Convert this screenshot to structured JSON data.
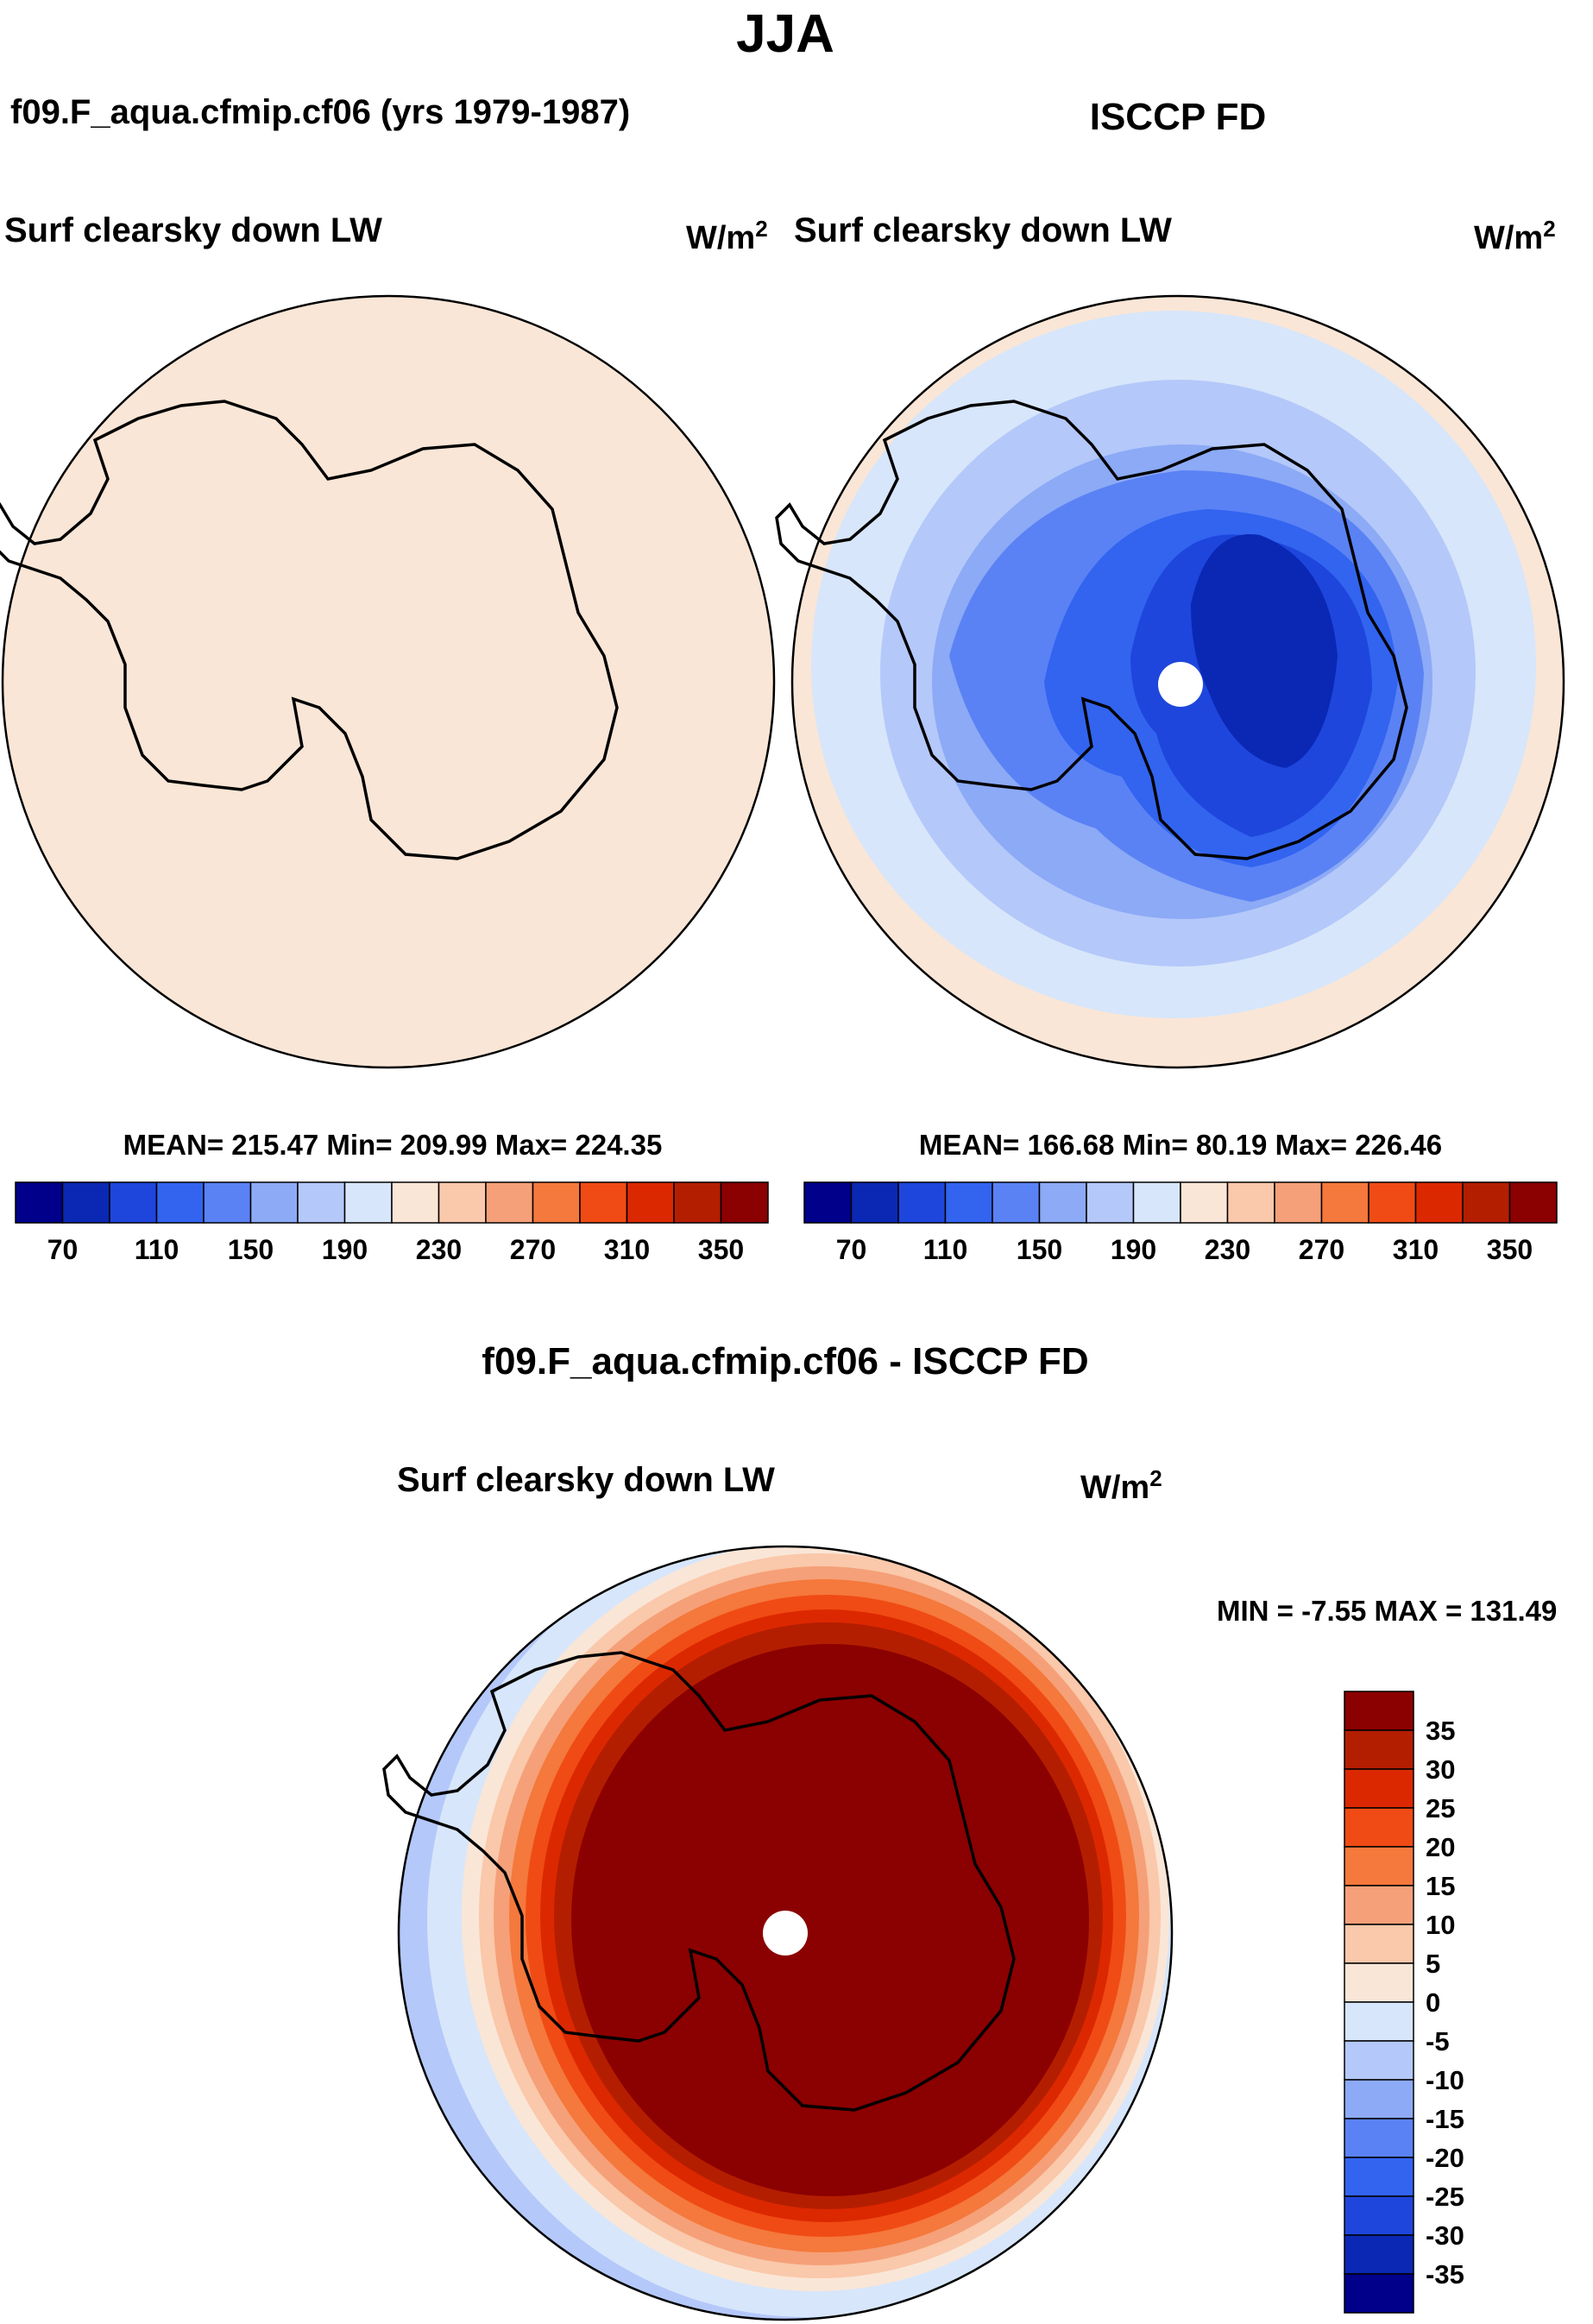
{
  "chart_data": {
    "type": "heatmap",
    "projection": "south polar stereographic",
    "season_title": "JJA",
    "variable": "Surf clearsky down LW",
    "units_base": "W/m",
    "units_exp": "2",
    "panels": [
      {
        "id": "model",
        "title": "f09.F_aqua.cfmip.cf06 (yrs 1979-1987)",
        "variable": "Surf clearsky down LW",
        "stats_text": "MEAN= 215.47  Min= 209.99  Max= 224.35",
        "stats": {
          "mean": 215.47,
          "min": 209.99,
          "max": 224.35
        },
        "field_description": "nearly uniform ~215 W/m2 everywhere"
      },
      {
        "id": "obs",
        "title": "ISCCP FD",
        "variable": "Surf clearsky down LW",
        "stats_text": "MEAN= 166.68  Min=  80.19  Max= 226.46",
        "stats": {
          "mean": 166.68,
          "min": 80.19,
          "max": 226.46
        },
        "field_description": "lowest (~80-100) over East Antarctic plateau, increasing outward to ~220 at edge"
      }
    ],
    "abs_colorbar": {
      "levels": [
        70,
        90,
        110,
        130,
        150,
        170,
        190,
        210,
        230,
        250,
        270,
        290,
        310,
        330,
        350
      ],
      "tick_labels": [
        "70",
        "110",
        "150",
        "190",
        "230",
        "270",
        "310",
        "350"
      ],
      "colors": [
        "#00008b",
        "#0a28b4",
        "#1e46dc",
        "#3264f0",
        "#5a82f5",
        "#8caaf5",
        "#b4c8fa",
        "#d7e6fa",
        "#fae6d7",
        "#fac8aa",
        "#f5a078",
        "#f5783c",
        "#f04b14",
        "#dc2800",
        "#b41e00",
        "#8b0000"
      ]
    },
    "diff_panel": {
      "title": "f09.F_aqua.cfmip.cf06 - ISCCP FD",
      "variable": "Surf clearsky down LW",
      "minmax_text": "MIN =  -7.55 MAX = 131.49",
      "min": -7.55,
      "max": 131.49,
      "levels": [
        -35,
        -30,
        -25,
        -20,
        -15,
        -10,
        -5,
        0,
        5,
        10,
        15,
        20,
        25,
        30,
        35
      ],
      "tick_labels": [
        "35",
        "30",
        "25",
        "20",
        "15",
        "10",
        "5",
        "0",
        "-5",
        "-10",
        "-15",
        "-20",
        "-25",
        "-30",
        "-35"
      ],
      "colors": [
        "#00008b",
        "#0a28b4",
        "#1e46dc",
        "#3264f0",
        "#5a82f5",
        "#8caaf5",
        "#b4c8fa",
        "#d7e6fa",
        "#fae6d7",
        "#fac8aa",
        "#f5a078",
        "#f5783c",
        "#f04b14",
        "#dc2800",
        "#b41e00",
        "#8b0000"
      ],
      "field_description": "> 35 over Antarctica and surrounding ocean, decreasing outward to slightly negative at the far edge"
    }
  }
}
